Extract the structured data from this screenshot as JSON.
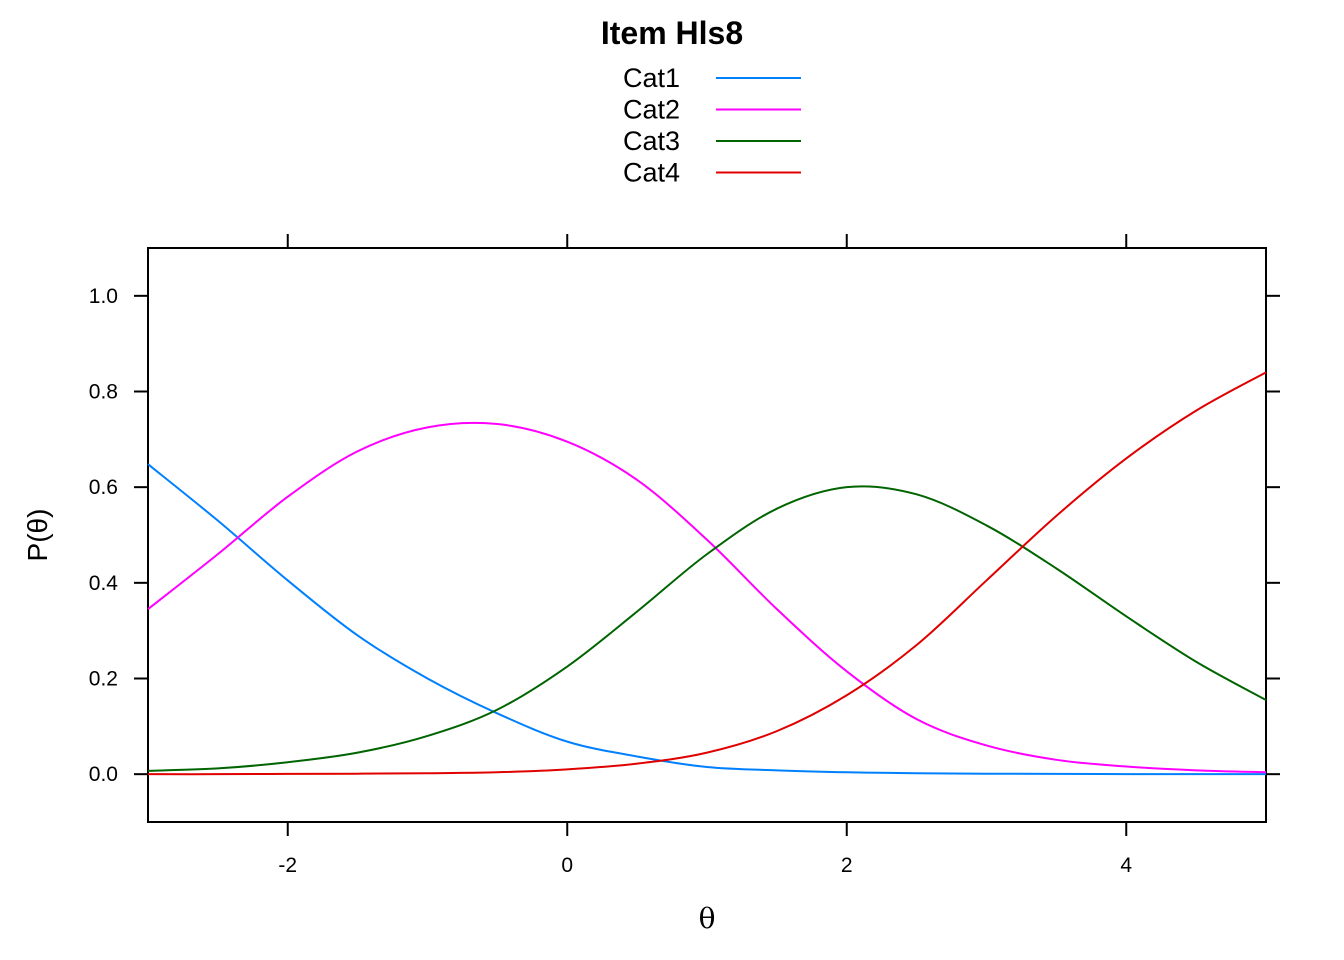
{
  "chart_data": {
    "type": "line",
    "title": "Item Hls8",
    "xlabel": "θ",
    "ylabel": "P(θ)",
    "xlim": [
      -3,
      5
    ],
    "ylim": [
      -0.1,
      1.1
    ],
    "xticks": [
      -2,
      0,
      2,
      4
    ],
    "yticks": [
      0.0,
      0.2,
      0.4,
      0.6,
      0.8,
      1.0
    ],
    "xtick_labels": [
      "-2",
      "0",
      "2",
      "4"
    ],
    "ytick_labels": [
      "0.0",
      "0.2",
      "0.4",
      "0.6",
      "0.8",
      "1.0"
    ],
    "grid": false,
    "legend_position": "top",
    "x": [
      -3,
      -2.5,
      -2,
      -1.5,
      -1,
      -0.5,
      0,
      0.5,
      1,
      1.5,
      2,
      2.5,
      3,
      3.5,
      4,
      4.5,
      5
    ],
    "series": [
      {
        "name": "Cat1",
        "color": "#0080FF",
        "values": [
          0.648,
          0.53,
          0.405,
          0.29,
          0.2,
          0.127,
          0.068,
          0.037,
          0.015,
          0.008,
          0.004,
          0.002,
          0.001,
          0.0005,
          0.0002,
          0.0001,
          0.0
        ]
      },
      {
        "name": "Cat2",
        "color": "#FF00FF",
        "values": [
          0.345,
          0.46,
          0.58,
          0.675,
          0.725,
          0.732,
          0.695,
          0.615,
          0.49,
          0.345,
          0.215,
          0.115,
          0.06,
          0.03,
          0.016,
          0.008,
          0.004
        ]
      },
      {
        "name": "Cat3",
        "color": "#006400",
        "values": [
          0.007,
          0.012,
          0.025,
          0.045,
          0.08,
          0.135,
          0.225,
          0.34,
          0.46,
          0.555,
          0.6,
          0.585,
          0.52,
          0.43,
          0.33,
          0.235,
          0.155
        ]
      },
      {
        "name": "Cat4",
        "color": "#E00000",
        "values": [
          0.0,
          0.0,
          0.0005,
          0.001,
          0.002,
          0.004,
          0.01,
          0.022,
          0.045,
          0.09,
          0.165,
          0.27,
          0.405,
          0.54,
          0.66,
          0.76,
          0.84
        ]
      }
    ]
  }
}
